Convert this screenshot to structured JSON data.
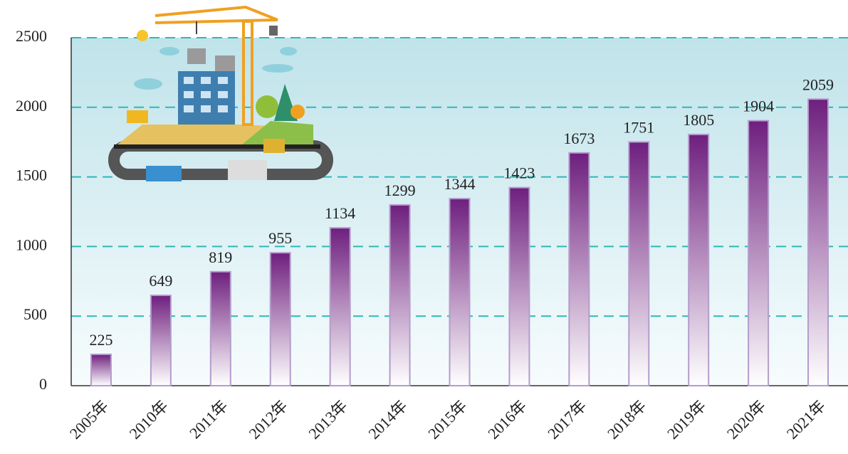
{
  "chart_data": {
    "type": "bar",
    "categories": [
      "2005年",
      "2010年",
      "2011年",
      "2012年",
      "2013年",
      "2014年",
      "2015年",
      "2016年",
      "2017年",
      "2018年",
      "2019年",
      "2020年",
      "2021年"
    ],
    "values": [
      225,
      649,
      819,
      955,
      1134,
      1299,
      1344,
      1423,
      1673,
      1751,
      1805,
      1904,
      2059
    ],
    "color": "#6e1f7e",
    "ylim": [
      0,
      2500
    ],
    "yticks": [
      0,
      500,
      1000,
      1500,
      2000,
      2500
    ],
    "grid": true
  }
}
